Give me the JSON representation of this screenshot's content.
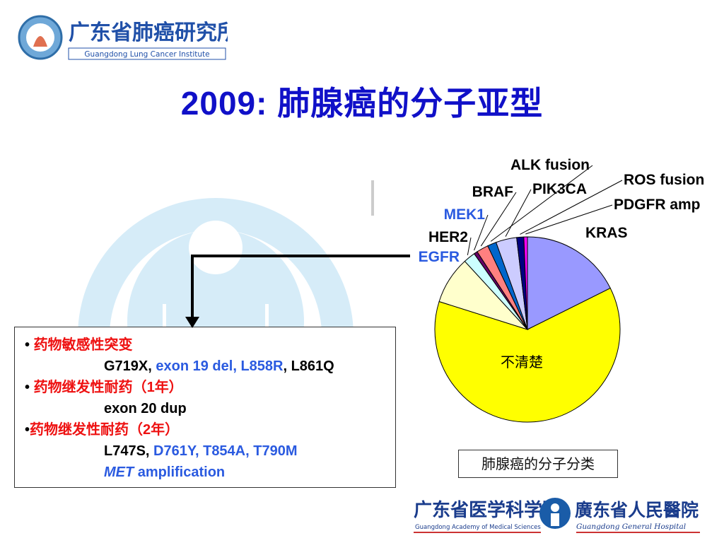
{
  "header": {
    "institute_cn": "广东省肺癌研究所",
    "institute_en": "Guangdong Lung Cancer Institute",
    "title": "2009: 肺腺癌的分子亚型"
  },
  "chart_data": {
    "type": "pie",
    "title": "",
    "caption": "肺腺癌的分子分类",
    "slices": [
      {
        "label": "KRAS",
        "value": 17.0,
        "color": "#9999ff"
      },
      {
        "label": "不清楚",
        "value": 60.0,
        "color": "#ffff00"
      },
      {
        "label": "EGFR",
        "value": 8.0,
        "color": "#ffffcc"
      },
      {
        "label": "HER2",
        "value": 2.0,
        "color": "#ccffff"
      },
      {
        "label": "MEK1",
        "value": 0.6,
        "color": "#660066"
      },
      {
        "label": "BRAF",
        "value": 2.0,
        "color": "#ff8080"
      },
      {
        "label": "ALK fusion",
        "value": 1.5,
        "color": "#0066cc"
      },
      {
        "label": "PIK3CA",
        "value": 3.5,
        "color": "#ccccff"
      },
      {
        "label": "ROS fusion",
        "value": 1.2,
        "color": "#000080"
      },
      {
        "label": "PDGFR amp",
        "value": 0.6,
        "color": "#ff00ff"
      }
    ]
  },
  "info": {
    "sensitive_title": "药物敏感性突变",
    "sensitive_a": "G719X, ",
    "sensitive_b": "exon 19 del, L858R",
    "sensitive_c": ", L861Q",
    "resist1_title_a": "药物继发性耐药（",
    "resist1_num": "1",
    "resist1_title_b": "年）",
    "resist1_detail": "exon 20 dup",
    "resist2_title_a": "药物继发性耐药（",
    "resist2_num": "2",
    "resist2_title_b": "年）",
    "resist2_a": "L747S, ",
    "resist2_b": "D761Y, T854A, T790M",
    "met_a": "MET",
    "met_b": " amplification"
  },
  "footer": {
    "academy_cn": "广东省医学科学院",
    "academy_en": "Guangdong Academy of Medical Sciences",
    "hospital_cn": "廣东省人民醫院",
    "hospital_en": "Guangdong General Hospital"
  },
  "colors": {
    "title": "#1010c8",
    "accent_red": "#ee1111",
    "accent_blue": "#2a5ae0",
    "watermark": "#d6ecf8"
  }
}
